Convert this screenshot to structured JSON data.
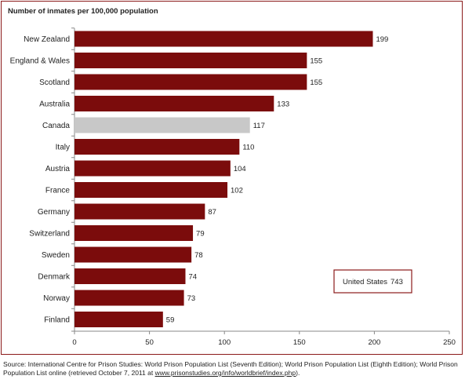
{
  "chart_data": {
    "type": "bar",
    "orientation": "horizontal",
    "title": "Number of inmates per 100,000 population",
    "categories": [
      "New Zealand",
      "England & Wales",
      "Scotland",
      "Australia",
      "Canada",
      "Italy",
      "Austria",
      "France",
      "Germany",
      "Switzerland",
      "Sweden",
      "Denmark",
      "Norway",
      "Finland"
    ],
    "values": [
      199,
      155,
      155,
      133,
      117,
      110,
      104,
      102,
      87,
      79,
      78,
      74,
      73,
      59
    ],
    "highlight": "Canada",
    "xlim": [
      0,
      250
    ],
    "xticks": [
      0,
      50,
      100,
      150,
      200,
      250
    ],
    "grid": false,
    "colors": {
      "bar": "#7b0c0c",
      "highlight": "#c8c8c8",
      "frame": "#8b1a1a"
    },
    "annotation": {
      "label": "United States",
      "value": "743"
    }
  },
  "source": {
    "text": "Source:  International Centre for Prison Studies: World Prison Population List (Seventh Edition); World Prison Population List (Eighth Edition); World Prison Population List online (retrieved October 7, 2011 at ",
    "link": "www.prisonstudies.org/info/worldbrief/index.php",
    "tail": ")."
  }
}
